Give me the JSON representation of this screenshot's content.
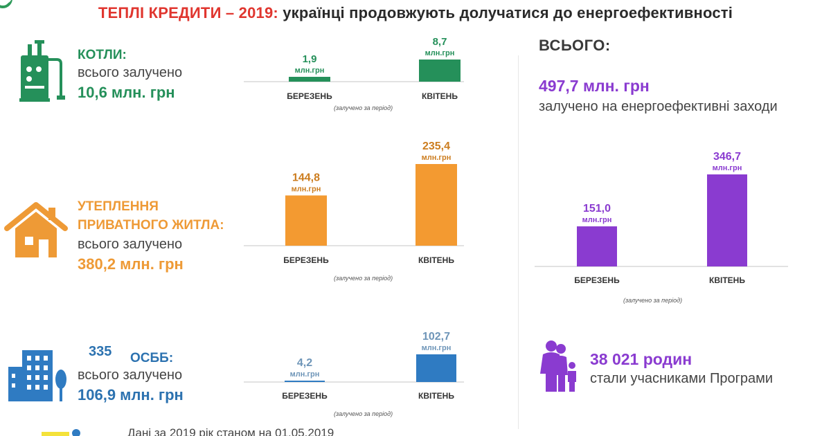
{
  "header": {
    "title_accent": "ТЕПЛІ КРЕДИТИ – 2019:",
    "title_rest": " українці продовжують долучатися до енергоефективності"
  },
  "sections": {
    "boilers": {
      "label": "КОТЛИ:",
      "sub": "всього залучено",
      "total": "10,6 млн. грн",
      "icon": "boiler-icon",
      "color": "#25905a"
    },
    "insulation": {
      "label_line1": "УТЕПЛЕННЯ",
      "label_line2": "ПРИВАТНОГО ЖИТЛА:",
      "sub": "всього залучено",
      "total": "380,2 млн. грн",
      "icon": "house-icon",
      "color": "#ee9a36"
    },
    "osbb": {
      "count": "335",
      "label": "ОСББ:",
      "sub": "всього залучено",
      "total": "106,9 млн. грн",
      "icon": "apartment-building-icon",
      "color": "#2c72b0"
    }
  },
  "summary": {
    "heading": "ВСЬОГО:",
    "total_value": "497,7 млн. грн",
    "total_sub": "залучено на енергоефективні заходи",
    "families_value": "38 021 родин",
    "families_sub": "стали учасниками Програми",
    "families_icon": "family-icon"
  },
  "footer": {
    "note": "Дані за 2019 рік станом на 01.05.2019"
  },
  "chart_data": [
    {
      "type": "bar",
      "categories": [
        "БЕРЕЗЕНЬ",
        "КВІТЕНЬ"
      ],
      "values": [
        1.9,
        8.7
      ],
      "value_labels": [
        "1,9",
        "8,7"
      ],
      "unit": "млн.грн",
      "note": "(залучено  за період)",
      "color": "#25905a",
      "label_color": "#25905a",
      "ylim": [
        0,
        8.7
      ]
    },
    {
      "type": "bar",
      "categories": [
        "БЕРЕЗЕНЬ",
        "КВІТЕНЬ"
      ],
      "values": [
        144.8,
        235.4
      ],
      "value_labels": [
        "144,8",
        "235,4"
      ],
      "unit": "млн.грн",
      "note": "(залучено  за період)",
      "color": "#f39a31",
      "label_color": "#cc7d1f",
      "ylim": [
        0,
        235.4
      ]
    },
    {
      "type": "bar",
      "categories": [
        "БЕРЕЗЕНЬ",
        "КВІТЕНЬ"
      ],
      "values": [
        4.2,
        102.7
      ],
      "value_labels": [
        "4,2",
        "102,7"
      ],
      "unit": "млн.грн",
      "note": "(залучено  за період)",
      "color": "#2f7bc2",
      "label_color": "#6e95b8",
      "ylim": [
        0,
        102.7
      ]
    },
    {
      "type": "bar",
      "categories": [
        "БЕРЕЗЕНЬ",
        "КВІТЕНЬ"
      ],
      "values": [
        151.0,
        346.7
      ],
      "value_labels": [
        "151,0",
        "346,7"
      ],
      "unit": "млн.грн",
      "note": "(залучено  за період)",
      "color": "#8a3bd0",
      "label_color": "#8a3bd0",
      "ylim": [
        0,
        346.7
      ]
    }
  ]
}
